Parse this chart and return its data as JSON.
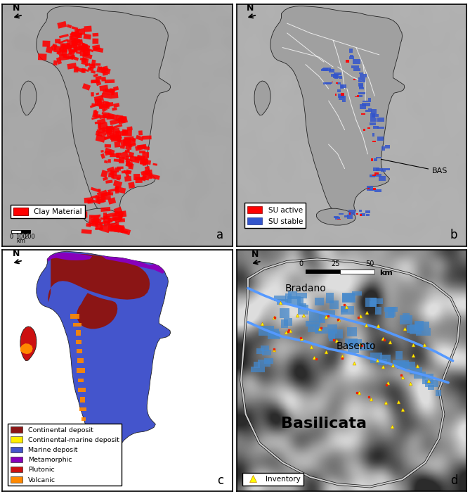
{
  "figure_bg": "#ffffff",
  "sea_color": "#d4d4d4",
  "italy_gray": "#a0a0a0",
  "italy_edge": "#333333",
  "panel_labels": [
    "a",
    "b",
    "c",
    "d"
  ],
  "panel_a": {
    "clay_color": "#ff0000",
    "legend_label": "Clay Material"
  },
  "panel_b": {
    "su_active_color": "#ff0000",
    "su_stable_color": "#3355cc",
    "river_color": "#ffffff",
    "annotation": "BAS"
  },
  "panel_c": {
    "legend_items": [
      [
        "Continental deposit",
        "#8b1515"
      ],
      [
        "Continental-marine deposit",
        "#ffee00"
      ],
      [
        "Marine deposit",
        "#4455cc"
      ],
      [
        "Metamorphic",
        "#8800bb"
      ],
      [
        "Plutonic",
        "#cc1111"
      ],
      [
        "Volcanic",
        "#ff8800"
      ]
    ]
  },
  "panel_d": {
    "map_bg": "#909090",
    "river_color": "#5599ff",
    "border_color": "#cccccc",
    "labels": [
      "Bradano",
      "Basento",
      "Basilicata"
    ],
    "label_sizes": [
      10,
      10,
      16
    ],
    "inventory_color": "#ffff00",
    "inventory_edge": "#cc8800"
  }
}
